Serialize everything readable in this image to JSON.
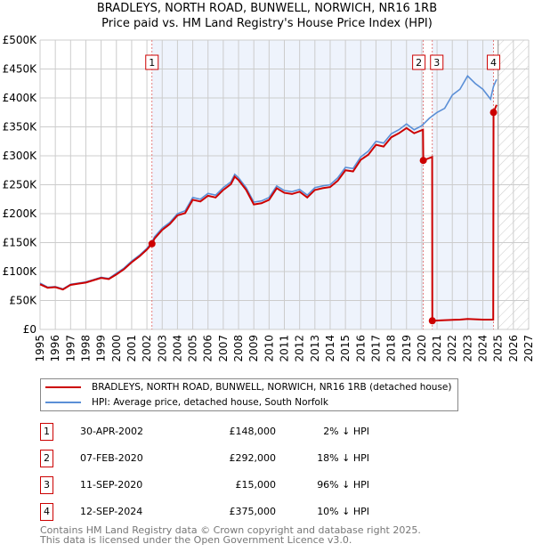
{
  "title": "BRADLEYS, NORTH ROAD, BUNWELL, NORWICH, NR16 1RB",
  "subtitle": "Price paid vs. HM Land Registry's House Price Index (HPI)",
  "chart_data": {
    "type": "line",
    "title": "BRADLEYS, NORTH ROAD, BUNWELL, NORWICH, NR16 1RB",
    "subtitle": "Price paid vs. HM Land Registry's House Price Index (HPI)",
    "xlim": [
      1995,
      2027
    ],
    "ylim": [
      0,
      500000
    ],
    "x_ticks": [
      "1995",
      "1996",
      "1997",
      "1998",
      "1999",
      "2000",
      "2001",
      "2002",
      "2003",
      "2004",
      "2005",
      "2006",
      "2007",
      "2008",
      "2009",
      "2010",
      "2011",
      "2012",
      "2013",
      "2014",
      "2015",
      "2016",
      "2017",
      "2018",
      "2019",
      "2020",
      "2021",
      "2022",
      "2023",
      "2024",
      "2025",
      "2026",
      "2027"
    ],
    "y_ticks": [
      {
        "v": 0,
        "l": "£0"
      },
      {
        "v": 50000,
        "l": "£50K"
      },
      {
        "v": 100000,
        "l": "£100K"
      },
      {
        "v": 150000,
        "l": "£150K"
      },
      {
        "v": 200000,
        "l": "£200K"
      },
      {
        "v": 250000,
        "l": "£250K"
      },
      {
        "v": 300000,
        "l": "£300K"
      },
      {
        "v": 350000,
        "l": "£350K"
      },
      {
        "v": 400000,
        "l": "£400K"
      },
      {
        "v": 450000,
        "l": "£450K"
      },
      {
        "v": 500000,
        "l": "£500K"
      }
    ],
    "grid": true,
    "forecast_start": 2025,
    "series": [
      {
        "name": "HPI: Average price, detached house, South Norfolk",
        "color": "#5b8fd6",
        "x": [
          1995,
          1995.5,
          1996,
          1996.5,
          1997,
          1997.5,
          1998,
          1998.5,
          1999,
          1999.5,
          2000,
          2000.5,
          2001,
          2001.5,
          2002,
          2002.33,
          2002.5,
          2003,
          2003.5,
          2004,
          2004.5,
          2005,
          2005.5,
          2006,
          2006.5,
          2007,
          2007.5,
          2007.75,
          2008,
          2008.5,
          2009,
          2009.5,
          2010,
          2010.5,
          2011,
          2011.5,
          2012,
          2012.5,
          2013,
          2013.5,
          2014,
          2014.5,
          2015,
          2015.5,
          2016,
          2016.5,
          2017,
          2017.5,
          2018,
          2018.5,
          2019,
          2019.5,
          2020,
          2020.5,
          2021,
          2021.5,
          2022,
          2022.5,
          2023,
          2023.5,
          2024,
          2024.5,
          2024.7,
          2024.9
        ],
        "y": [
          80000,
          73000,
          74000,
          70000,
          78000,
          80000,
          82000,
          86000,
          90000,
          88000,
          97000,
          106000,
          118000,
          128000,
          140000,
          151000,
          160000,
          175000,
          185000,
          200000,
          205000,
          228000,
          225000,
          235000,
          232000,
          245000,
          255000,
          268000,
          262000,
          245000,
          220000,
          222000,
          228000,
          248000,
          240000,
          238000,
          242000,
          232000,
          245000,
          248000,
          250000,
          262000,
          280000,
          278000,
          298000,
          308000,
          325000,
          322000,
          338000,
          345000,
          355000,
          345000,
          352000,
          365000,
          375000,
          382000,
          405000,
          415000,
          438000,
          425000,
          415000,
          398000,
          420000,
          432000
        ]
      },
      {
        "name": "BRADLEYS, NORTH ROAD, BUNWELL, NORWICH, NR16 1RB (detached house)",
        "color": "#cc0000",
        "x": [
          1995,
          1995.5,
          1996,
          1996.5,
          1997,
          1997.5,
          1998,
          1998.5,
          1999,
          1999.5,
          2000,
          2000.5,
          2001,
          2001.5,
          2002,
          2002.33,
          2002.5,
          2003,
          2003.5,
          2004,
          2004.5,
          2005,
          2005.5,
          2006,
          2006.5,
          2007,
          2007.5,
          2007.75,
          2008,
          2008.5,
          2009,
          2009.5,
          2010,
          2010.5,
          2011,
          2011.5,
          2012,
          2012.5,
          2013,
          2013.5,
          2014,
          2014.5,
          2015,
          2015.5,
          2016,
          2016.5,
          2017,
          2017.5,
          2018,
          2018.5,
          2019,
          2019.5,
          2020.08,
          2020.1,
          2020.68,
          2020.69,
          2020.7,
          2021.5,
          2022.5,
          2023,
          2024,
          2024.68,
          2024.7,
          2024.9
        ],
        "y": [
          78000,
          72000,
          73000,
          69000,
          77000,
          79000,
          81000,
          85000,
          89000,
          87000,
          95000,
          104000,
          116000,
          126000,
          138000,
          148000,
          157000,
          172000,
          182000,
          197000,
          201000,
          224000,
          221000,
          231000,
          228000,
          241000,
          251000,
          264000,
          258000,
          241000,
          216000,
          218000,
          224000,
          244000,
          236000,
          234000,
          238000,
          228000,
          241000,
          244000,
          246000,
          257000,
          275000,
          273000,
          293000,
          302000,
          319000,
          316000,
          332000,
          339000,
          348000,
          339000,
          345000,
          292000,
          298000,
          15000,
          15000,
          16000,
          17000,
          18000,
          17000,
          17000,
          375000,
          388000
        ]
      }
    ],
    "sales": [
      {
        "n": "1",
        "x": 2002.33,
        "y": 148000,
        "date": "30-APR-2002",
        "price": "£148,000",
        "hpi": "2% ↓ HPI"
      },
      {
        "n": "2",
        "x": 2020.1,
        "y": 292000,
        "date": "07-FEB-2020",
        "price": "£292,000",
        "hpi": "18% ↓ HPI"
      },
      {
        "n": "3",
        "x": 2020.69,
        "y": 15000,
        "date": "11-SEP-2020",
        "price": "£15,000",
        "hpi": "96% ↓ HPI"
      },
      {
        "n": "4",
        "x": 2024.7,
        "y": 375000,
        "date": "12-SEP-2024",
        "price": "£375,000",
        "hpi": "10% ↓ HPI"
      }
    ]
  },
  "legend": {
    "red": "BRADLEYS, NORTH ROAD, BUNWELL, NORWICH, NR16 1RB (detached house)",
    "blue": "HPI: Average price, detached house, South Norfolk"
  },
  "footer": {
    "line1": "Contains HM Land Registry data © Crown copyright and database right 2025.",
    "line2": "This data is licensed under the Open Government Licence v3.0."
  }
}
